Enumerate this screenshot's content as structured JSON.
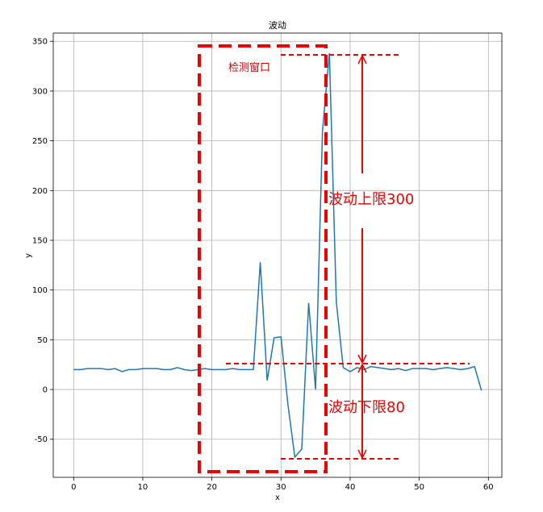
{
  "chart_data": {
    "type": "line",
    "title": "波动",
    "x_label": "x",
    "y_label": "y",
    "x": [
      0,
      1,
      2,
      3,
      4,
      5,
      6,
      7,
      8,
      9,
      10,
      11,
      12,
      13,
      14,
      15,
      16,
      17,
      18,
      19,
      20,
      21,
      22,
      23,
      24,
      25,
      26,
      27,
      28,
      29,
      30,
      31,
      32,
      33,
      34,
      35,
      36,
      37,
      38,
      39,
      40,
      41,
      42,
      43,
      44,
      45,
      46,
      47,
      48,
      49,
      50,
      51,
      52,
      53,
      54,
      55,
      56,
      57,
      58,
      59
    ],
    "series": [
      {
        "name": "y",
        "color": "#1f77b4",
        "values": [
          20,
          20,
          21,
          21,
          21,
          20,
          21,
          18,
          20,
          20,
          21,
          21,
          21,
          20,
          20,
          22,
          20,
          19,
          20,
          21,
          20,
          20,
          20,
          21,
          20,
          20,
          20,
          128,
          9,
          52,
          53,
          -15,
          -68,
          -60,
          87,
          0,
          260,
          338,
          88,
          22,
          18,
          22,
          20,
          23,
          22,
          21,
          20,
          21,
          19,
          21,
          21,
          21,
          20,
          21,
          22,
          21,
          20,
          21,
          23,
          -1
        ]
      }
    ],
    "xlim": [
      -2.95,
      61.95
    ],
    "ylim": [
      -88.3,
      358.3
    ],
    "xticks": [
      0,
      10,
      20,
      30,
      40,
      50,
      60
    ],
    "yticks": [
      -50,
      0,
      50,
      100,
      150,
      200,
      250,
      300,
      350
    ],
    "grid": true,
    "annotations": [
      "检测窗口",
      "波动上限300",
      "波动下限80"
    ]
  }
}
